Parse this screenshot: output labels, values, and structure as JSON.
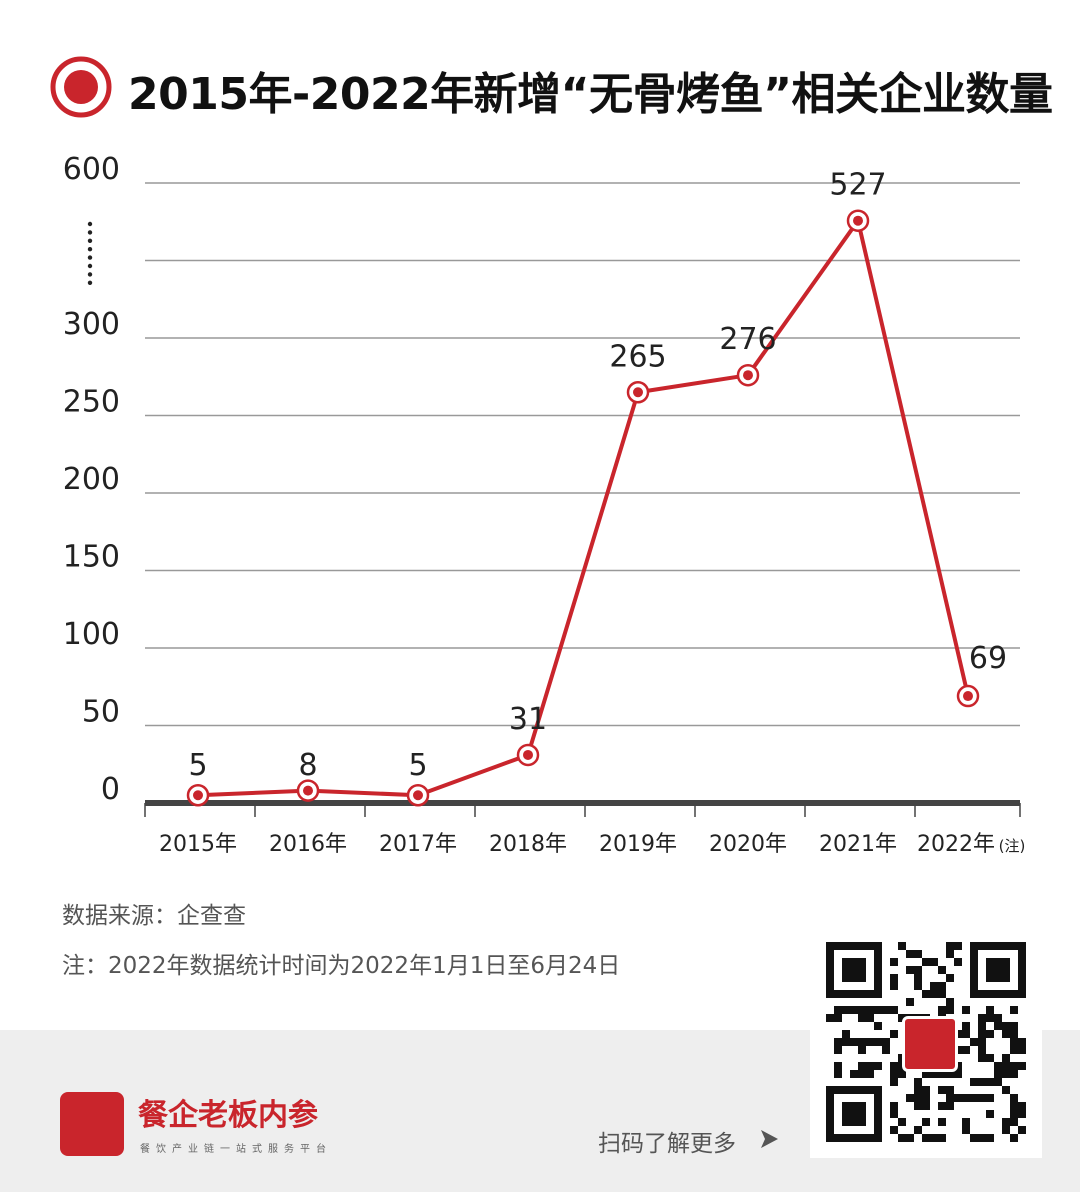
{
  "header": {
    "title": "2015年-2022年新增“无骨烤鱼”相关企业数量",
    "icon": "target-icon"
  },
  "colors": {
    "accent": "#c9252c",
    "grid": "#999999",
    "axis": "#444444"
  },
  "chart_data": {
    "type": "line",
    "categories": [
      "2015年",
      "2016年",
      "2017年",
      "2018年",
      "2019年",
      "2020年",
      "2021年",
      "2022年"
    ],
    "category_note": "(注)",
    "values": [
      5,
      8,
      5,
      31,
      265,
      276,
      527,
      69
    ],
    "data_labels": [
      "5",
      "8",
      "5",
      "31",
      "265",
      "276",
      "527",
      "69"
    ],
    "y_ticks": [
      "0",
      "50",
      "100",
      "150",
      "200",
      "250",
      "300",
      "",
      "600"
    ],
    "y_axis_break": true,
    "ylim": [
      0,
      600
    ],
    "grid": true,
    "legend": "none"
  },
  "notes": {
    "source": "数据来源：企查查",
    "note": "注：2022年数据统计时间为2022年1月1日至6月24日"
  },
  "footer": {
    "brand_name": "餐企老板内参",
    "brand_tagline": "餐饮产业链一站式服务平台",
    "scan_text": "扫码了解更多"
  }
}
